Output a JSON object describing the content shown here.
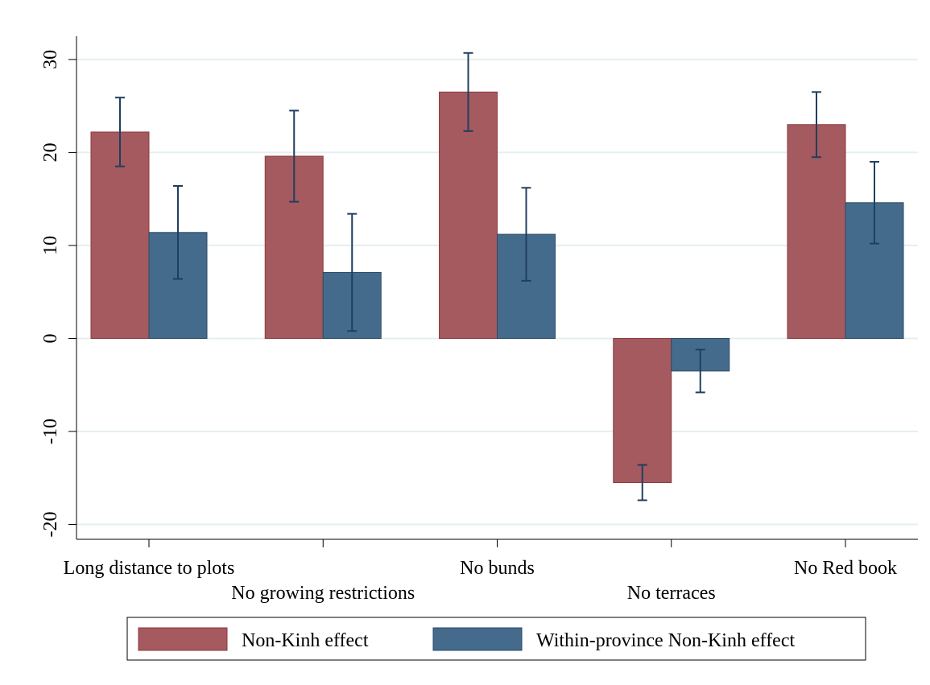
{
  "chart_data": {
    "type": "bar",
    "categories": [
      "Long distance to plots",
      "No growing restrictions",
      "No bunds",
      "No terraces",
      "No Red book"
    ],
    "series": [
      {
        "name": "Non-Kinh effect",
        "color": "#a45a5f",
        "values": [
          22.2,
          19.6,
          26.5,
          -15.5,
          23.0
        ],
        "errors": [
          3.7,
          4.9,
          4.2,
          1.9,
          3.5
        ]
      },
      {
        "name": "Within-province Non-Kinh effect",
        "color": "#456b8c",
        "values": [
          11.4,
          7.1,
          11.2,
          -3.5,
          14.6
        ],
        "errors": [
          5.0,
          6.3,
          5.0,
          2.3,
          4.4
        ]
      }
    ],
    "ylim": [
      -21.6,
      32.5
    ],
    "yticks": [
      -20,
      -10,
      0,
      10,
      20,
      30
    ],
    "grid": true,
    "legend": "bottom"
  }
}
